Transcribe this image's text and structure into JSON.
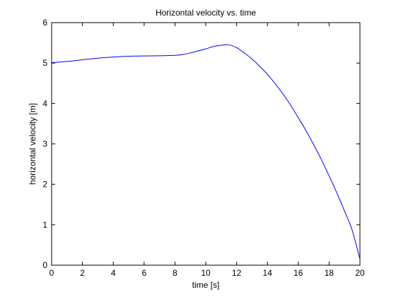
{
  "chart_data": {
    "type": "line",
    "title": "Horizontal velocity vs. time",
    "xlabel": "time [s]",
    "ylabel": "horizontal velocity [m]",
    "xlim": [
      0,
      20
    ],
    "ylim": [
      0,
      6
    ],
    "xticks": [
      0,
      2,
      4,
      6,
      8,
      10,
      12,
      14,
      16,
      18,
      20
    ],
    "yticks": [
      0,
      1,
      2,
      3,
      4,
      5,
      6
    ],
    "grid": false,
    "legend": "none",
    "colors": {
      "line": "#0000ff",
      "axes": "#000000",
      "background": "#ffffff"
    },
    "series": [
      {
        "x": [
          0,
          1,
          2,
          3,
          4,
          5,
          6,
          7,
          8,
          8.5,
          9,
          9.5,
          10,
          10.5,
          11,
          11.5,
          12,
          12.5,
          13,
          13.5,
          14,
          14.5,
          15,
          15.5,
          16,
          16.5,
          17,
          17.5,
          18,
          18.5,
          19,
          19.5,
          20
        ],
        "y": [
          5.01,
          5.04,
          5.08,
          5.12,
          5.15,
          5.17,
          5.175,
          5.18,
          5.19,
          5.21,
          5.25,
          5.3,
          5.35,
          5.41,
          5.44,
          5.45,
          5.38,
          5.25,
          5.1,
          4.92,
          4.72,
          4.49,
          4.24,
          3.96,
          3.65,
          3.33,
          2.98,
          2.61,
          2.21,
          1.79,
          1.34,
          0.86,
          0.15
        ]
      }
    ]
  }
}
